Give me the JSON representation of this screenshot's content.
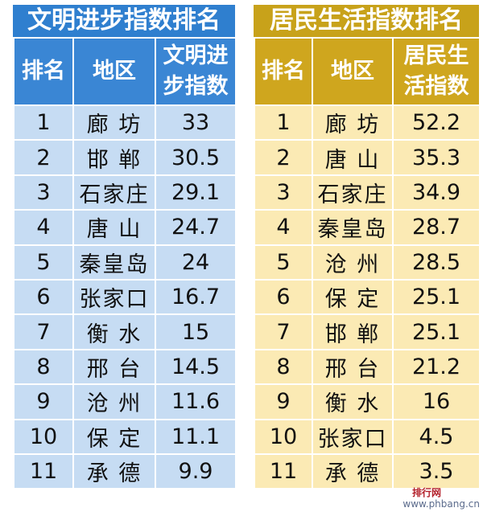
{
  "left": {
    "title": "文明进步指数排名",
    "headers": {
      "rank": "排名",
      "region": "地区",
      "value_line1": "文明进",
      "value_line2": "步指数"
    },
    "rows": [
      {
        "rank": "1",
        "region": "廊  坊",
        "value": "33"
      },
      {
        "rank": "2",
        "region": "邯  郸",
        "value": "30.5"
      },
      {
        "rank": "3",
        "region": "石家庄",
        "value": "29.1"
      },
      {
        "rank": "4",
        "region": "唐  山",
        "value": "24.7"
      },
      {
        "rank": "5",
        "region": "秦皇岛",
        "value": "24"
      },
      {
        "rank": "6",
        "region": "张家口",
        "value": "16.7"
      },
      {
        "rank": "7",
        "region": "衡  水",
        "value": "15"
      },
      {
        "rank": "8",
        "region": "邢  台",
        "value": "14.5"
      },
      {
        "rank": "9",
        "region": "沧  州",
        "value": "11.6"
      },
      {
        "rank": "10",
        "region": "保  定",
        "value": "11.1"
      },
      {
        "rank": "11",
        "region": "承  德",
        "value": "9.9"
      }
    ]
  },
  "right": {
    "title": "居民生活指数排名",
    "headers": {
      "rank": "排名",
      "region": "地区",
      "value_line1": "居民生",
      "value_line2": "活指数"
    },
    "rows": [
      {
        "rank": "1",
        "region": "廊  坊",
        "value": "52.2"
      },
      {
        "rank": "2",
        "region": "唐  山",
        "value": "35.3"
      },
      {
        "rank": "3",
        "region": "石家庄",
        "value": "34.9"
      },
      {
        "rank": "4",
        "region": "秦皇岛",
        "value": "28.7"
      },
      {
        "rank": "5",
        "region": "沧  州",
        "value": "28.5"
      },
      {
        "rank": "6",
        "region": "保  定",
        "value": "25.1"
      },
      {
        "rank": "7",
        "region": "邯  郸",
        "value": "25.1"
      },
      {
        "rank": "8",
        "region": "邢  台",
        "value": "21.2"
      },
      {
        "rank": "9",
        "region": "衡  水",
        "value": "16"
      },
      {
        "rank": "10",
        "region": "张家口",
        "value": "4.5"
      },
      {
        "rank": "11",
        "region": "承  德",
        "value": "3.5"
      }
    ]
  },
  "watermark": {
    "site": "www.phbang.cn",
    "logo": "排行网"
  },
  "colors": {
    "blue_title": "#2f7fcf",
    "blue_cell": "#c6dcf3",
    "gold_title": "#c8a21a",
    "gold_cell": "#fbeab4"
  }
}
